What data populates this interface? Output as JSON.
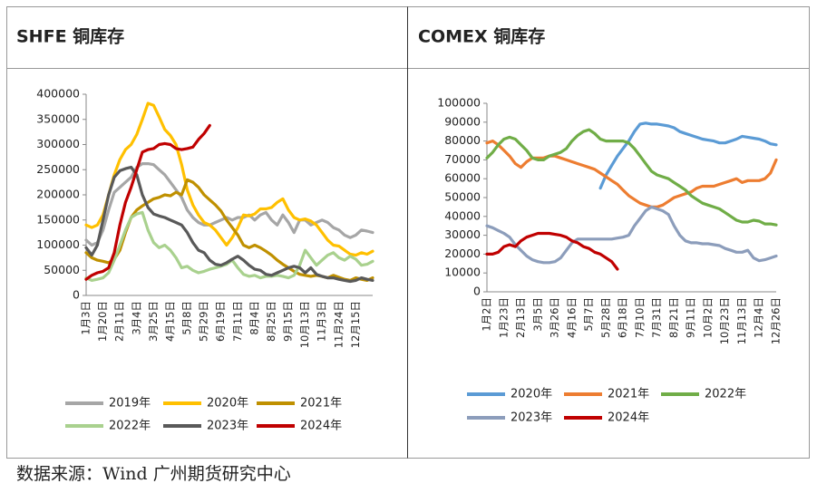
{
  "source": "数据来源：Wind  广州期货研究中心",
  "chart_data": [
    {
      "type": "line",
      "title": "SHFE 铜库存",
      "categories": [
        "1月3日",
        null,
        null,
        "1月20日",
        null,
        null,
        "2月11日",
        null,
        null,
        "3月4日",
        null,
        null,
        "3月25日",
        null,
        null,
        "4月15日",
        null,
        null,
        "5月8日",
        null,
        null,
        "5月29日",
        null,
        null,
        "6月19日",
        null,
        null,
        "7月11日",
        null,
        null,
        "8月4日",
        null,
        null,
        "8月25日",
        null,
        null,
        "9月15日",
        null,
        null,
        "10月13日",
        null,
        null,
        "11月3日",
        null,
        null,
        "11月24日",
        null,
        null,
        "12月15日",
        null,
        null,
        null
      ],
      "ylim": [
        0,
        400000
      ],
      "yticks": [
        0,
        50000,
        100000,
        150000,
        200000,
        250000,
        300000,
        350000,
        400000
      ],
      "legend": "bottom",
      "series": [
        {
          "name": "2019年",
          "color": "#a6a6a6",
          "values": [
            110000,
            100000,
            105000,
            130000,
            170000,
            205000,
            215000,
            225000,
            235000,
            255000,
            262000,
            262000,
            260000,
            250000,
            240000,
            225000,
            210000,
            195000,
            170000,
            155000,
            145000,
            140000,
            140000,
            145000,
            150000,
            155000,
            150000,
            155000,
            155000,
            160000,
            150000,
            160000,
            165000,
            150000,
            140000,
            160000,
            145000,
            125000,
            150000,
            150000,
            140000,
            145000,
            150000,
            145000,
            135000,
            130000,
            120000,
            115000,
            120000,
            130000,
            128000,
            125000
          ]
        },
        {
          "name": "2020年",
          "color": "#ffc000",
          "values": [
            140000,
            135000,
            140000,
            160000,
            200000,
            240000,
            270000,
            290000,
            300000,
            320000,
            350000,
            382000,
            378000,
            355000,
            330000,
            318000,
            300000,
            260000,
            210000,
            180000,
            160000,
            145000,
            140000,
            130000,
            115000,
            100000,
            115000,
            135000,
            160000,
            158000,
            162000,
            172000,
            172000,
            175000,
            185000,
            192000,
            170000,
            155000,
            150000,
            152000,
            148000,
            140000,
            125000,
            110000,
            100000,
            98000,
            90000,
            82000,
            80000,
            85000,
            82000,
            88000
          ]
        },
        {
          "name": "2021年",
          "color": "#bf9000",
          "values": [
            85000,
            75000,
            70000,
            68000,
            65000,
            72000,
            90000,
            125000,
            155000,
            170000,
            178000,
            185000,
            192000,
            195000,
            200000,
            198000,
            205000,
            200000,
            230000,
            225000,
            215000,
            200000,
            190000,
            180000,
            168000,
            150000,
            135000,
            120000,
            100000,
            95000,
            100000,
            95000,
            88000,
            80000,
            70000,
            62000,
            55000,
            48000,
            42000,
            40000,
            38000,
            40000,
            38000,
            35000,
            40000,
            36000,
            32000,
            30000,
            35000,
            32000,
            30000,
            35000
          ]
        },
        {
          "name": "2022年",
          "color": "#a9d18e",
          "values": [
            35000,
            30000,
            32000,
            35000,
            45000,
            70000,
            100000,
            130000,
            155000,
            162000,
            165000,
            130000,
            105000,
            95000,
            100000,
            90000,
            75000,
            55000,
            58000,
            50000,
            45000,
            48000,
            52000,
            55000,
            58000,
            62000,
            70000,
            55000,
            42000,
            38000,
            40000,
            35000,
            38000,
            38000,
            40000,
            38000,
            35000,
            40000,
            60000,
            90000,
            75000,
            60000,
            70000,
            80000,
            85000,
            75000,
            70000,
            78000,
            72000,
            60000,
            62000,
            68000
          ]
        },
        {
          "name": "2023年",
          "color": "#595959",
          "values": [
            95000,
            80000,
            100000,
            150000,
            200000,
            235000,
            248000,
            252000,
            255000,
            240000,
            200000,
            175000,
            162000,
            158000,
            155000,
            150000,
            145000,
            140000,
            125000,
            105000,
            90000,
            85000,
            70000,
            62000,
            60000,
            65000,
            72000,
            78000,
            70000,
            60000,
            52000,
            50000,
            42000,
            40000,
            45000,
            50000,
            55000,
            58000,
            55000,
            45000,
            55000,
            42000,
            38000,
            35000,
            35000,
            32000,
            30000,
            28000,
            30000,
            35000,
            32000,
            30000
          ]
        },
        {
          "name": "2024年",
          "color": "#c00000",
          "values": [
            32000,
            40000,
            45000,
            48000,
            55000,
            85000,
            140000,
            185000,
            215000,
            250000,
            285000,
            290000,
            292000,
            300000,
            302000,
            300000,
            292000,
            290000,
            292000,
            295000,
            310000,
            322000,
            338000,
            null,
            null,
            null,
            null,
            null,
            null,
            null,
            null,
            null,
            null,
            null,
            null,
            null,
            null,
            null,
            null,
            null,
            null,
            null,
            null,
            null,
            null,
            null,
            null,
            null,
            null,
            null,
            null,
            null
          ]
        }
      ]
    },
    {
      "type": "line",
      "title": "COMEX 铜库存",
      "categories": [
        "1月2日",
        null,
        null,
        "1月23日",
        null,
        null,
        "2月13日",
        null,
        null,
        "3月5日",
        null,
        null,
        "3月26日",
        null,
        null,
        "4月16日",
        null,
        null,
        "5月7日",
        null,
        null,
        "5月28日",
        null,
        null,
        "6月18日",
        null,
        null,
        "7月10日",
        null,
        null,
        "7月31日",
        null,
        null,
        "8月21日",
        null,
        null,
        "9月11日",
        null,
        null,
        "10月2日",
        null,
        null,
        "10月23日",
        null,
        null,
        "11月13日",
        null,
        null,
        "12月4日",
        null,
        null,
        "12月26日"
      ],
      "ylim": [
        0,
        100000
      ],
      "yticks": [
        0,
        10000,
        20000,
        30000,
        40000,
        50000,
        60000,
        70000,
        80000,
        90000,
        100000
      ],
      "legend": "bottom",
      "series": [
        {
          "name": "2020年",
          "color": "#5b9bd5",
          "values": [
            null,
            null,
            null,
            null,
            null,
            null,
            null,
            null,
            null,
            null,
            null,
            null,
            null,
            null,
            null,
            null,
            null,
            null,
            null,
            null,
            55000,
            62000,
            67000,
            72000,
            76000,
            80000,
            85000,
            89000,
            89500,
            89000,
            89000,
            88500,
            88000,
            87000,
            85000,
            84000,
            83000,
            82000,
            81000,
            80500,
            80000,
            79000,
            79000,
            80000,
            81000,
            82500,
            82000,
            81500,
            81000,
            80000,
            78500,
            78000
          ]
        },
        {
          "name": "2021年",
          "color": "#ed7d31",
          "values": [
            79000,
            80000,
            78000,
            75000,
            72000,
            68000,
            66000,
            69000,
            71000,
            71000,
            71000,
            72000,
            72000,
            71000,
            70000,
            69000,
            68000,
            67000,
            66000,
            65000,
            63000,
            61000,
            59000,
            57000,
            54000,
            51000,
            49000,
            47000,
            46000,
            45000,
            45000,
            46000,
            48000,
            50000,
            51000,
            52000,
            53000,
            55000,
            56000,
            56000,
            56000,
            57000,
            58000,
            59000,
            60000,
            58000,
            59000,
            59000,
            59000,
            60000,
            63000,
            70000
          ]
        },
        {
          "name": "2022年",
          "color": "#70ad47",
          "values": [
            71000,
            74000,
            78000,
            81000,
            82000,
            81000,
            78000,
            75000,
            71000,
            70000,
            70000,
            72000,
            73000,
            74000,
            76000,
            80000,
            83000,
            85000,
            86000,
            84000,
            81000,
            80000,
            80000,
            80000,
            80000,
            79000,
            76000,
            72000,
            68000,
            64000,
            62000,
            61000,
            60000,
            58000,
            56000,
            54000,
            51000,
            49000,
            47000,
            46000,
            45000,
            44000,
            42000,
            40000,
            38000,
            37000,
            37000,
            38000,
            37500,
            36000,
            36000,
            35500
          ]
        },
        {
          "name": "2023年",
          "color": "#8c9dbb",
          "values": [
            35000,
            34000,
            32500,
            31000,
            29000,
            25000,
            22000,
            19000,
            17000,
            16000,
            15500,
            15500,
            16000,
            18000,
            22000,
            26000,
            28000,
            28000,
            28000,
            28000,
            28000,
            28000,
            28000,
            28500,
            29000,
            30000,
            35000,
            39000,
            43000,
            45000,
            44000,
            43000,
            41000,
            35000,
            30000,
            27000,
            26000,
            26000,
            25500,
            25500,
            25000,
            24500,
            23000,
            22000,
            21000,
            21000,
            22000,
            18000,
            16500,
            17000,
            18000,
            19000
          ]
        },
        {
          "name": "2024年",
          "color": "#c00000",
          "values": [
            20000,
            20000,
            21000,
            24000,
            25000,
            24000,
            27000,
            29000,
            30000,
            31000,
            31000,
            31000,
            30500,
            30000,
            29000,
            27000,
            26000,
            24000,
            23000,
            21000,
            20000,
            18000,
            16000,
            12000,
            null,
            null,
            null,
            null,
            null,
            null,
            null,
            null,
            null,
            null,
            null,
            null,
            null,
            null,
            null,
            null,
            null,
            null,
            null,
            null,
            null,
            null,
            null,
            null,
            null,
            null,
            null,
            null
          ]
        }
      ]
    }
  ]
}
